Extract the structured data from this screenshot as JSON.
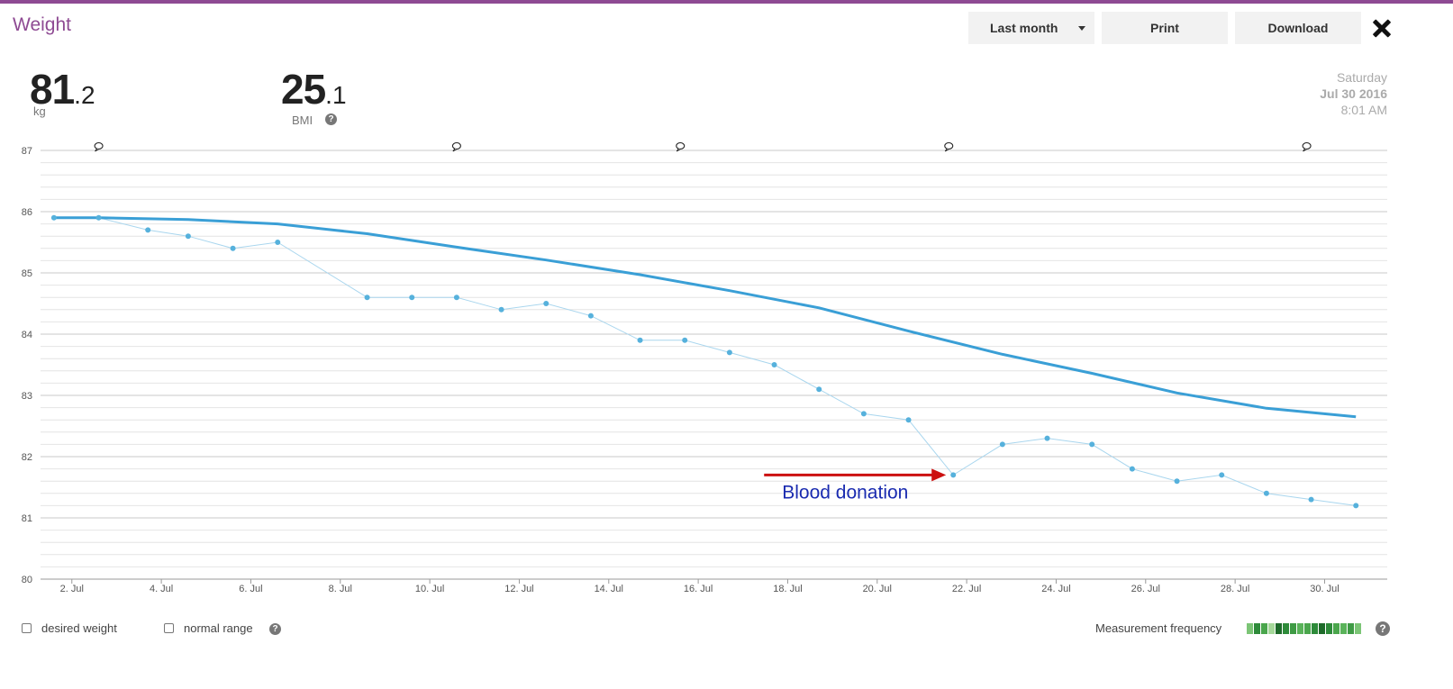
{
  "header": {
    "title": "Weight",
    "range_label": "Last month",
    "print_label": "Print",
    "download_label": "Download"
  },
  "colors": {
    "accent": "#8e4a93",
    "trend": "#3a9fd6",
    "points": "#56b1dc",
    "annotation_arrow": "#cc1111",
    "annotation_text": "#1a2bb0"
  },
  "summary": {
    "weight_int": "81",
    "weight_dec": ".2",
    "weight_unit": "kg",
    "bmi_int": "25",
    "bmi_dec": ".1",
    "bmi_label": "BMI",
    "day": "Saturday",
    "date": "Jul 30 2016",
    "time": "8:01 AM"
  },
  "footer": {
    "desired_weight_label": "desired weight",
    "normal_range_label": "normal range",
    "frequency_label": "Measurement frequency",
    "frequency_colors": [
      "#7cc576",
      "#2e8b3a",
      "#4aa64c",
      "#a6d99a",
      "#1e6b2a",
      "#2e8b3a",
      "#3f9b45",
      "#5ab35a",
      "#4aa64c",
      "#2e8b3a",
      "#1e6b2a",
      "#2e8b3a",
      "#4aa64c",
      "#5ab35a",
      "#3f9b45",
      "#7cc576"
    ]
  },
  "chart_data": {
    "type": "line",
    "title": "",
    "xlabel": "",
    "ylabel": "",
    "ylim": [
      80,
      87
    ],
    "y_ticks": [
      80,
      81,
      82,
      83,
      84,
      85,
      86,
      87
    ],
    "x_range": [
      1.3,
      31.4
    ],
    "x_ticks": [
      {
        "x": 2,
        "label": "2. Jul"
      },
      {
        "x": 4,
        "label": "4. Jul"
      },
      {
        "x": 6,
        "label": "6. Jul"
      },
      {
        "x": 8,
        "label": "8. Jul"
      },
      {
        "x": 10,
        "label": "10. Jul"
      },
      {
        "x": 12,
        "label": "12. Jul"
      },
      {
        "x": 14,
        "label": "14. Jul"
      },
      {
        "x": 16,
        "label": "16. Jul"
      },
      {
        "x": 18,
        "label": "18. Jul"
      },
      {
        "x": 20,
        "label": "20. Jul"
      },
      {
        "x": 22,
        "label": "22. Jul"
      },
      {
        "x": 24,
        "label": "24. Jul"
      },
      {
        "x": 26,
        "label": "26. Jul"
      },
      {
        "x": 28,
        "label": "28. Jul"
      },
      {
        "x": 30,
        "label": "30. Jul"
      }
    ],
    "grid": true,
    "series": [
      {
        "kind": "measurements",
        "x": [
          1.6,
          2.6,
          3.7,
          4.6,
          5.6,
          6.6,
          8.6,
          9.6,
          10.6,
          11.6,
          12.6,
          13.6,
          14.7,
          15.7,
          16.7,
          17.7,
          18.7,
          19.7,
          20.7,
          21.7,
          22.8,
          23.8,
          24.8,
          25.7,
          26.7,
          27.7,
          28.7,
          29.7,
          30.7
        ],
        "values": [
          85.9,
          85.9,
          85.7,
          85.6,
          85.4,
          85.5,
          84.6,
          84.6,
          84.6,
          84.4,
          84.5,
          84.3,
          83.9,
          83.9,
          83.7,
          83.5,
          83.1,
          82.7,
          82.6,
          81.7,
          82.2,
          82.3,
          82.2,
          81.8,
          81.6,
          81.7,
          81.4,
          81.3,
          81.2
        ]
      },
      {
        "kind": "trend",
        "x": [
          1.6,
          2.6,
          4.6,
          6.6,
          8.6,
          10.6,
          12.6,
          14.7,
          16.7,
          18.7,
          20.7,
          22.8,
          24.8,
          26.7,
          28.7,
          30.7
        ],
        "values": [
          85.9,
          85.9,
          85.87,
          85.8,
          85.64,
          85.42,
          85.21,
          84.97,
          84.71,
          84.43,
          84.05,
          83.67,
          83.36,
          83.04,
          82.79,
          82.65
        ]
      }
    ],
    "note_markers_x": [
      2.6,
      10.6,
      15.6,
      21.6,
      29.6
    ],
    "annotations": [
      {
        "text": "Blood donation",
        "x": 21.7,
        "y": 81.7
      }
    ]
  }
}
